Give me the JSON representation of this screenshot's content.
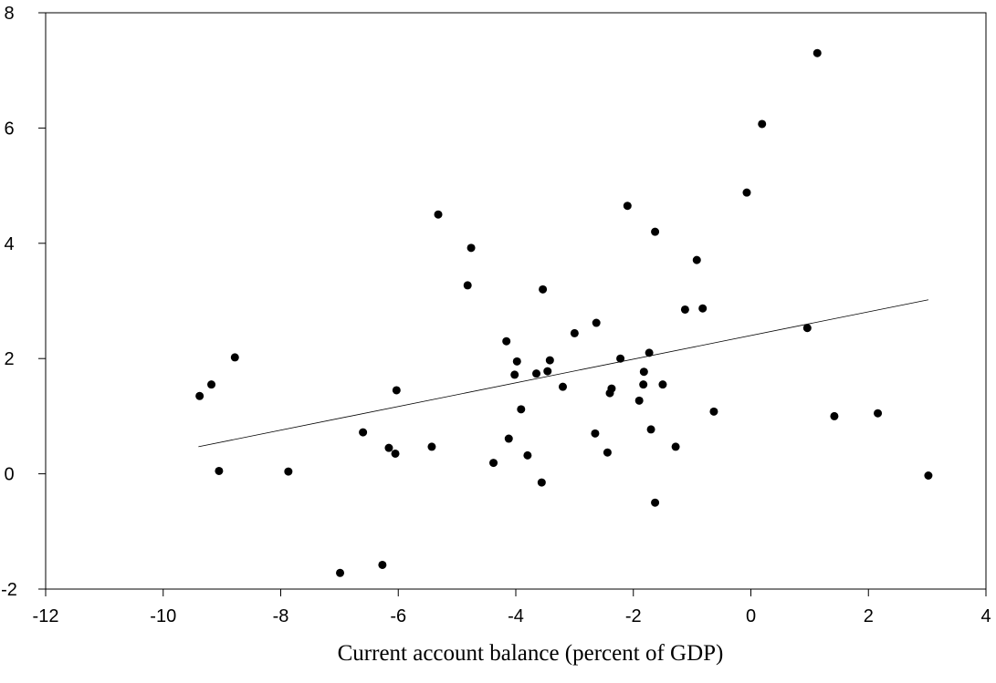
{
  "chart_data": {
    "type": "scatter",
    "title": "",
    "xlabel": "Current account balance (percent of GDP)",
    "ylabel": "",
    "xlim": [
      -12,
      4
    ],
    "ylim": [
      -2,
      8
    ],
    "x_ticks": [
      -12,
      -10,
      -8,
      -6,
      -4,
      -2,
      0,
      2,
      4
    ],
    "y_ticks": [
      -2,
      0,
      2,
      4,
      6,
      8
    ],
    "x_tick_labels": [
      "-12",
      "-10",
      "-8",
      "-6",
      "-4",
      "-2",
      "0",
      "2",
      "4"
    ],
    "y_tick_labels": [
      "-2",
      "0",
      "2",
      "4",
      "6",
      "8"
    ],
    "grid": false,
    "legend": "none",
    "colors": {
      "points": "#000000",
      "trendline": "#000000",
      "frame": "#000000"
    },
    "points": [
      {
        "x": -9.38,
        "y": 1.35
      },
      {
        "x": -9.18,
        "y": 1.55
      },
      {
        "x": -9.05,
        "y": 0.05
      },
      {
        "x": -8.78,
        "y": 2.02
      },
      {
        "x": -7.87,
        "y": 0.04
      },
      {
        "x": -6.99,
        "y": -1.72
      },
      {
        "x": -6.6,
        "y": 0.72
      },
      {
        "x": -6.27,
        "y": -1.58
      },
      {
        "x": -6.16,
        "y": 0.45
      },
      {
        "x": -6.05,
        "y": 0.35
      },
      {
        "x": -6.03,
        "y": 1.45
      },
      {
        "x": -5.43,
        "y": 0.47
      },
      {
        "x": -5.32,
        "y": 4.5
      },
      {
        "x": -4.82,
        "y": 3.27
      },
      {
        "x": -4.76,
        "y": 3.92
      },
      {
        "x": -4.38,
        "y": 0.19
      },
      {
        "x": -4.16,
        "y": 2.3
      },
      {
        "x": -4.12,
        "y": 0.61
      },
      {
        "x": -4.02,
        "y": 1.72
      },
      {
        "x": -3.98,
        "y": 1.95
      },
      {
        "x": -3.91,
        "y": 1.12
      },
      {
        "x": -3.8,
        "y": 0.32
      },
      {
        "x": -3.65,
        "y": 1.74
      },
      {
        "x": -3.56,
        "y": -0.15
      },
      {
        "x": -3.54,
        "y": 3.2
      },
      {
        "x": -3.46,
        "y": 1.78
      },
      {
        "x": -3.42,
        "y": 1.97
      },
      {
        "x": -3.2,
        "y": 1.51
      },
      {
        "x": -3.0,
        "y": 2.44
      },
      {
        "x": -2.65,
        "y": 0.7
      },
      {
        "x": -2.63,
        "y": 2.62
      },
      {
        "x": -2.44,
        "y": 0.37
      },
      {
        "x": -2.4,
        "y": 1.4
      },
      {
        "x": -2.37,
        "y": 1.48
      },
      {
        "x": -2.22,
        "y": 2.0
      },
      {
        "x": -2.1,
        "y": 4.65
      },
      {
        "x": -1.9,
        "y": 1.27
      },
      {
        "x": -1.83,
        "y": 1.55
      },
      {
        "x": -1.82,
        "y": 1.77
      },
      {
        "x": -1.73,
        "y": 2.1
      },
      {
        "x": -1.7,
        "y": 0.77
      },
      {
        "x": -1.63,
        "y": -0.5
      },
      {
        "x": -1.63,
        "y": 4.2
      },
      {
        "x": -1.5,
        "y": 1.55
      },
      {
        "x": -1.28,
        "y": 0.47
      },
      {
        "x": -1.12,
        "y": 2.85
      },
      {
        "x": -0.92,
        "y": 3.71
      },
      {
        "x": -0.82,
        "y": 2.87
      },
      {
        "x": -0.63,
        "y": 1.08
      },
      {
        "x": -0.07,
        "y": 4.88
      },
      {
        "x": 0.19,
        "y": 6.07
      },
      {
        "x": 0.96,
        "y": 2.53
      },
      {
        "x": 1.13,
        "y": 7.3
      },
      {
        "x": 1.42,
        "y": 1.0
      },
      {
        "x": 2.16,
        "y": 1.05
      },
      {
        "x": 3.02,
        "y": -0.03
      }
    ],
    "trendline": {
      "x": [
        -9.4,
        3.02
      ],
      "y": [
        0.47,
        3.02
      ]
    }
  }
}
